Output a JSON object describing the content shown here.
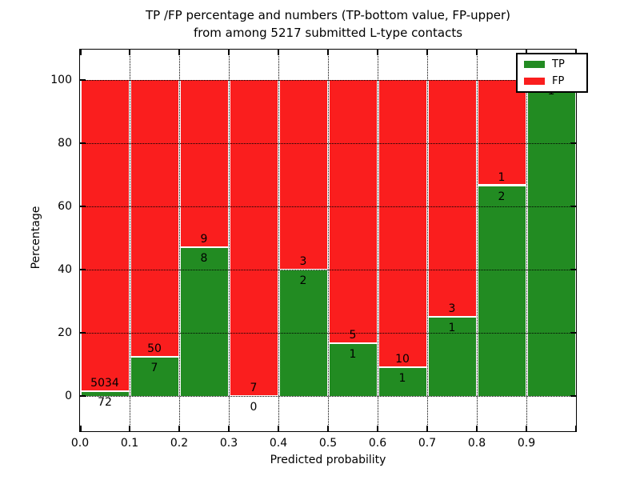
{
  "chart_data": {
    "type": "bar",
    "stacked": true,
    "normalized_to_percent": true,
    "title_line1": "TP /FP percentage and numbers (TP-bottom value, FP-upper)",
    "title_line2": "from among 5217 submitted L-type contacts",
    "xlabel": "Predicted probability",
    "ylabel": "Percentage",
    "bins": [
      "0.0-0.1",
      "0.1-0.2",
      "0.2-0.3",
      "0.3-0.4",
      "0.4-0.5",
      "0.5-0.6",
      "0.6-0.7",
      "0.7-0.8",
      "0.8-0.9",
      "0.9-1.0"
    ],
    "xtick_labels": [
      "0.0",
      "0.1",
      "0.2",
      "0.3",
      "0.4",
      "0.5",
      "0.6",
      "0.7",
      "0.8",
      "0.9"
    ],
    "ytick_values": [
      0,
      20,
      40,
      60,
      80,
      100
    ],
    "ylim": [
      -11,
      110
    ],
    "xlim": [
      0.0,
      1.0
    ],
    "grid_style": "dotted",
    "background": "#ffffff",
    "series": [
      {
        "name": "TP",
        "color": "#228b22",
        "counts": [
          72,
          7,
          8,
          0,
          2,
          1,
          1,
          1,
          2,
          1
        ],
        "percent": [
          1.41,
          12.28,
          47.06,
          0.0,
          40.0,
          16.67,
          9.09,
          25.0,
          66.67,
          100.0
        ]
      },
      {
        "name": "FP",
        "color": "#fa1e1e",
        "counts": [
          5034,
          50,
          9,
          7,
          3,
          5,
          10,
          3,
          1,
          0
        ],
        "percent": [
          98.59,
          87.72,
          52.94,
          100.0,
          60.0,
          83.33,
          90.91,
          75.0,
          33.33,
          0.0
        ]
      }
    ],
    "legend": {
      "position": "upper right",
      "entries": [
        "TP",
        "FP"
      ]
    }
  }
}
